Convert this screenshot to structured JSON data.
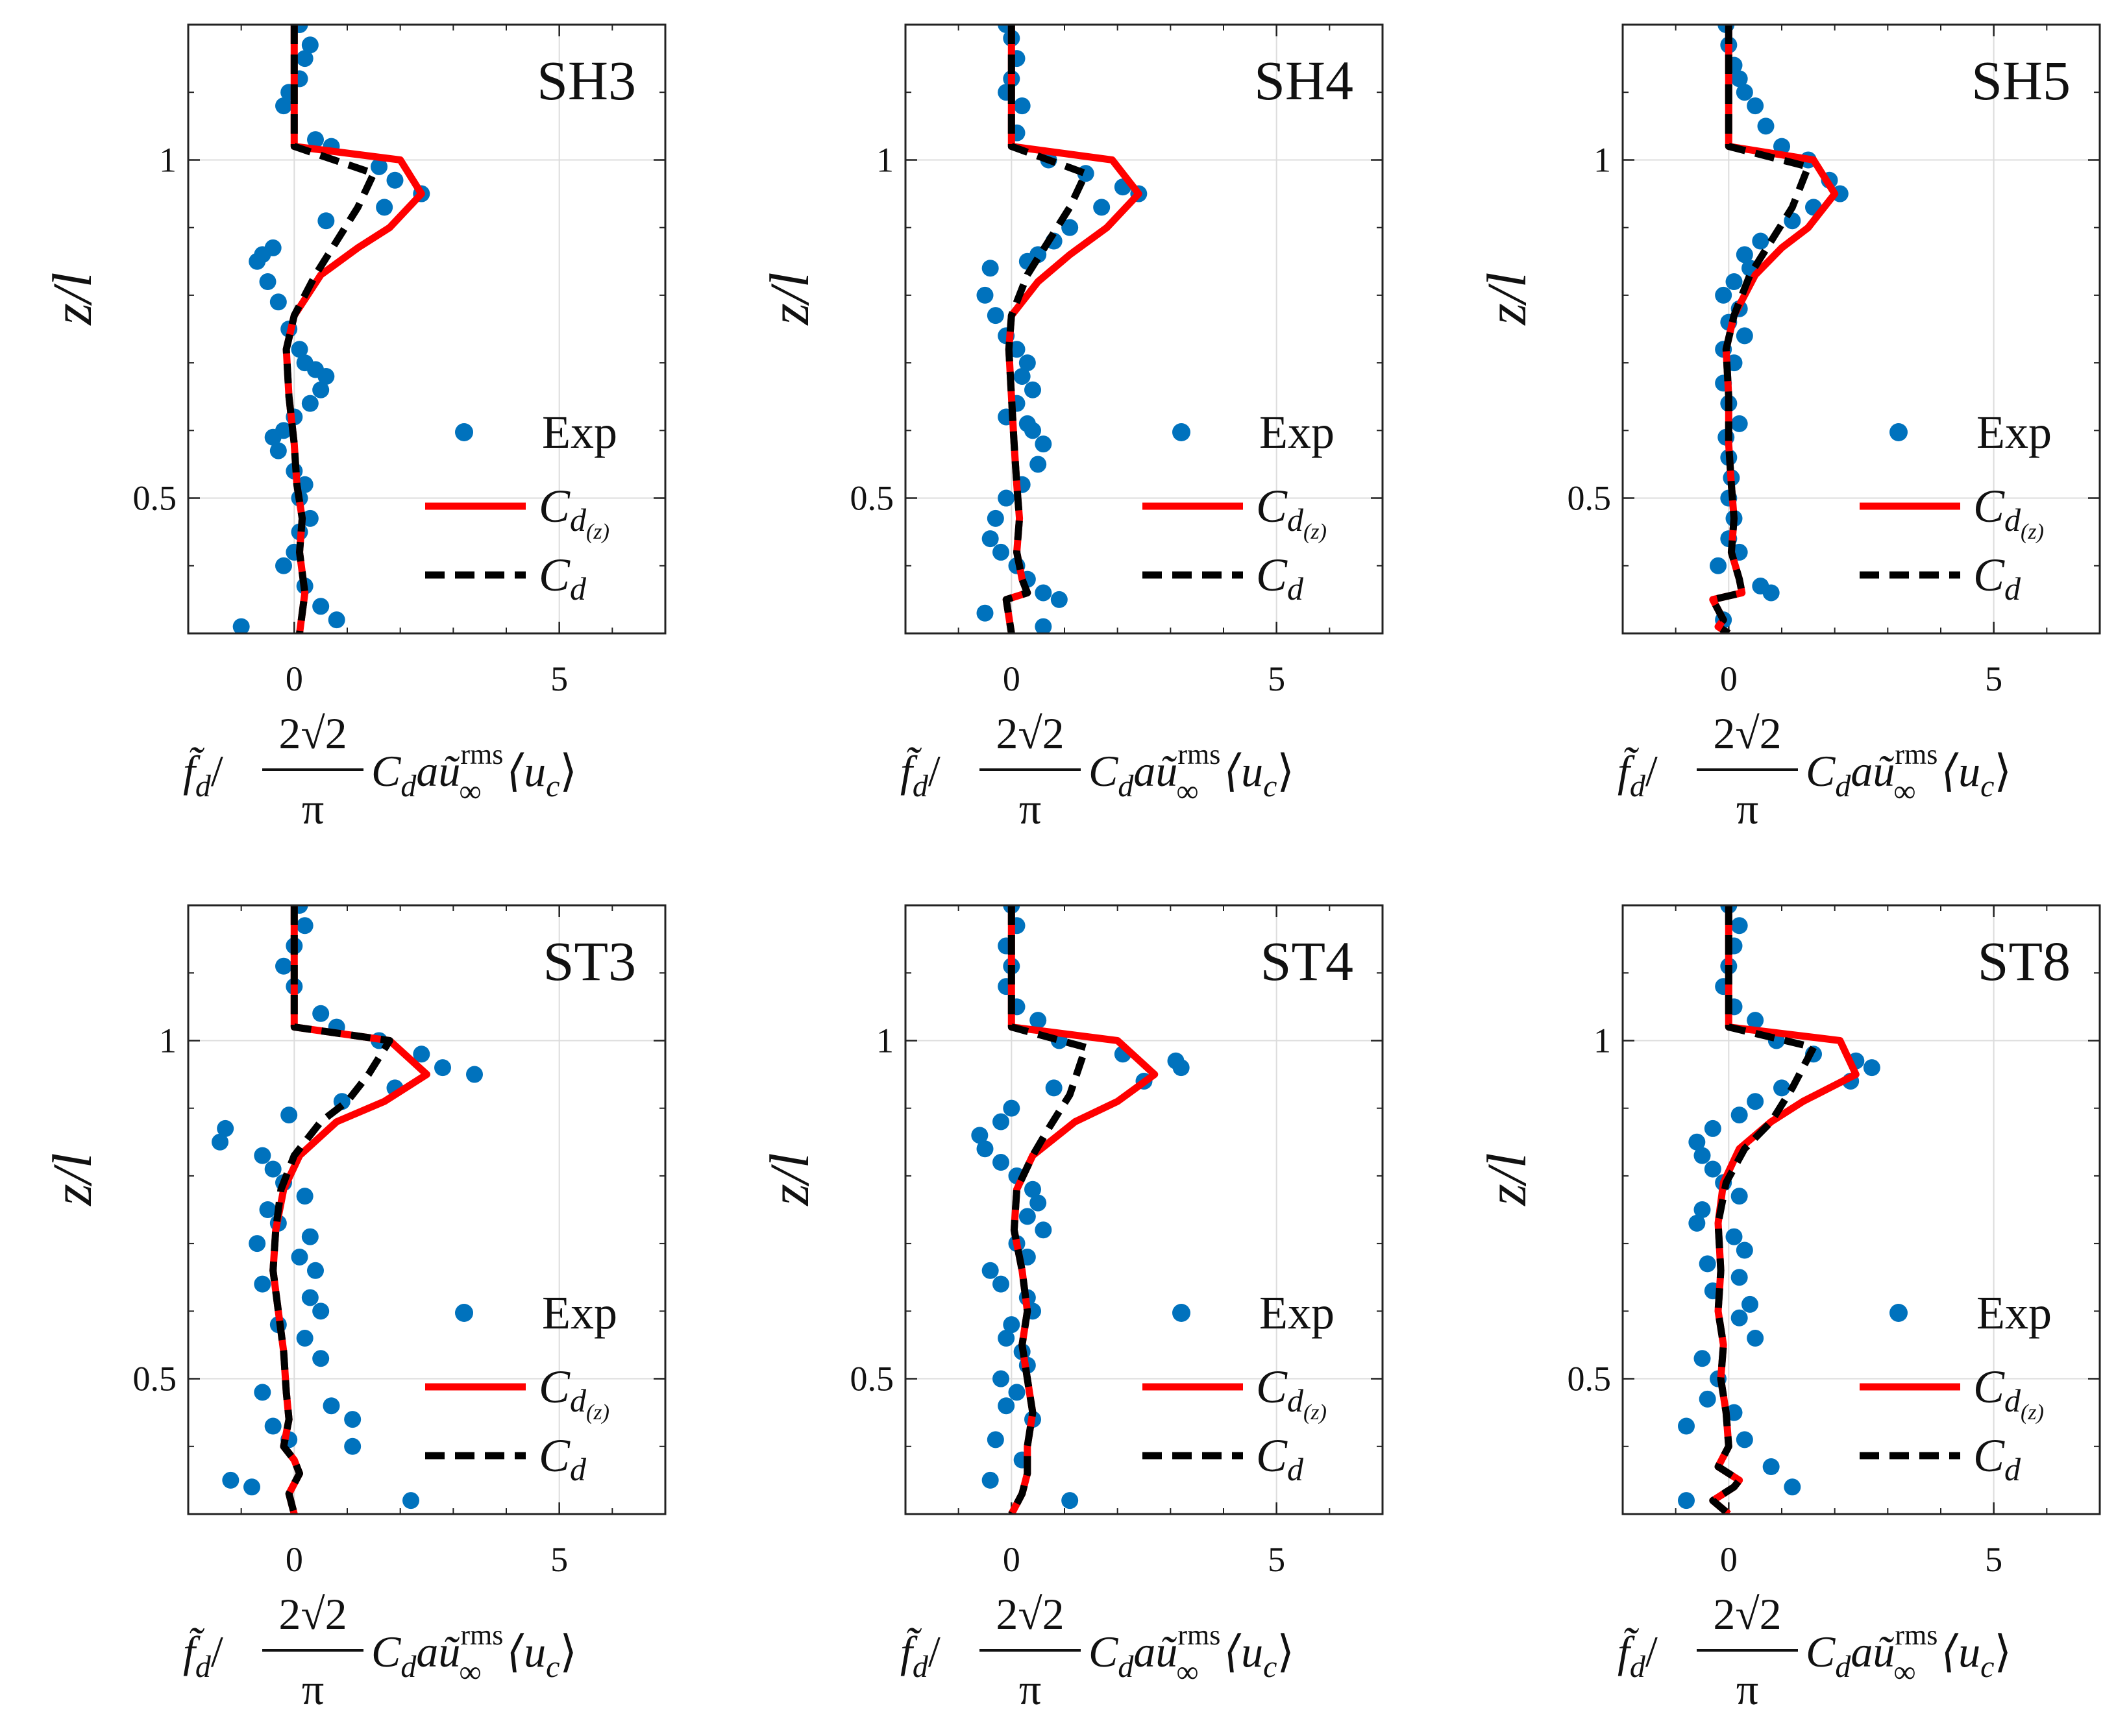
{
  "figure": {
    "ylabel": "z/l",
    "xlabel": {
      "numerator_left": "f̃",
      "sub_d": "d",
      "slash": "/",
      "frac_num": "2√2",
      "frac_den": "π",
      "cd_c": "C",
      "cd_sub": "d",
      "a": "a",
      "u": "ũ",
      "sup_rms": "rms",
      "sub_inf": "∞",
      "bracket": "⟨u",
      "bracket_sub": "c",
      "bracket_close": "⟩"
    },
    "legend": {
      "exp": "Exp",
      "cdz_main": "C",
      "cdz_sub": "d",
      "cdz_subsub": "(z)",
      "cd_main": "C",
      "cd_sub": "d"
    },
    "colors": {
      "exp": "#0072BD",
      "cdz": "#FF0000",
      "cd": "#000000",
      "grid": "#dcdcdc",
      "axis": "#222222"
    }
  },
  "chart_data": [
    {
      "type": "scatter+line",
      "title": "SH3",
      "xlim": [
        -2,
        7
      ],
      "ylim": [
        0.3,
        1.2
      ],
      "xticks": [
        0,
        5
      ],
      "yticks": [
        0.5,
        1
      ],
      "xtick_labels": [
        "0",
        "5"
      ],
      "ytick_labels": [
        "0.5",
        "1"
      ],
      "exp": {
        "x": [
          0.1,
          0.3,
          0.2,
          0.1,
          -0.1,
          -0.2,
          0.4,
          0.7,
          1.6,
          1.9,
          2.4,
          1.7,
          0.6,
          -0.4,
          -0.6,
          -0.7,
          -0.5,
          -0.3,
          -0.1,
          0.1,
          0.2,
          0.4,
          0.6,
          0.5,
          0.3,
          0,
          -0.2,
          -0.4,
          -0.3,
          0,
          0.2,
          0.1,
          0.3,
          0.1,
          0,
          -0.2,
          0.2,
          0.5,
          0.8,
          -1
        ],
        "z": [
          1.2,
          1.17,
          1.15,
          1.12,
          1.1,
          1.08,
          1.03,
          1.02,
          0.99,
          0.97,
          0.95,
          0.93,
          0.91,
          0.87,
          0.86,
          0.85,
          0.82,
          0.79,
          0.75,
          0.72,
          0.7,
          0.69,
          0.68,
          0.66,
          0.64,
          0.62,
          0.6,
          0.59,
          0.57,
          0.54,
          0.52,
          0.5,
          0.47,
          0.45,
          0.42,
          0.4,
          0.37,
          0.34,
          0.32,
          0.31
        ]
      },
      "cdz": {
        "x": [
          0,
          0,
          0,
          2,
          2.4,
          1.8,
          1.2,
          0.5,
          0,
          -0.15,
          -0.1,
          0,
          0.05,
          0.15,
          0.1,
          0.2,
          0.1
        ],
        "z": [
          1.2,
          1.1,
          1.02,
          1.0,
          0.95,
          0.9,
          0.87,
          0.83,
          0.77,
          0.72,
          0.65,
          0.58,
          0.52,
          0.47,
          0.42,
          0.36,
          0.3
        ]
      },
      "cd": {
        "x": [
          0,
          0,
          0,
          1.5,
          1.2,
          0.8,
          0.4,
          0,
          -0.15,
          -0.1,
          0,
          0.05,
          0.15,
          0.1,
          0.2,
          0.1
        ],
        "z": [
          1.2,
          1.1,
          1.02,
          0.98,
          0.93,
          0.88,
          0.83,
          0.77,
          0.72,
          0.65,
          0.58,
          0.52,
          0.47,
          0.42,
          0.36,
          0.3
        ]
      }
    },
    {
      "type": "scatter+line",
      "title": "SH4",
      "xlim": [
        -2,
        7
      ],
      "ylim": [
        0.3,
        1.2
      ],
      "xticks": [
        0,
        5
      ],
      "yticks": [
        0.5,
        1
      ],
      "xtick_labels": [
        "0",
        "5"
      ],
      "ytick_labels": [
        "0.5",
        "1"
      ],
      "exp": {
        "x": [
          -0.1,
          0,
          0.1,
          0,
          -0.1,
          0.2,
          0.1,
          0.7,
          1.4,
          2.1,
          2.4,
          1.7,
          1.1,
          0.8,
          0.5,
          0.3,
          -0.4,
          -0.5,
          -0.3,
          -0.1,
          0.1,
          0.3,
          0.2,
          0.4,
          0.1,
          -0.1,
          0.3,
          0.4,
          0.6,
          0.5,
          0.2,
          -0.1,
          -0.3,
          -0.4,
          -0.2,
          0.1,
          0.3,
          0.6,
          0.9,
          -0.5,
          0.6
        ],
        "z": [
          1.2,
          1.18,
          1.15,
          1.12,
          1.1,
          1.08,
          1.04,
          1.0,
          0.98,
          0.96,
          0.95,
          0.93,
          0.9,
          0.88,
          0.86,
          0.85,
          0.84,
          0.8,
          0.77,
          0.74,
          0.72,
          0.7,
          0.68,
          0.66,
          0.64,
          0.62,
          0.61,
          0.6,
          0.58,
          0.55,
          0.52,
          0.5,
          0.47,
          0.44,
          0.42,
          0.4,
          0.38,
          0.36,
          0.35,
          0.33,
          0.31
        ]
      },
      "cdz": {
        "x": [
          0,
          0,
          0,
          1.9,
          2.4,
          1.8,
          1.1,
          0.5,
          0,
          -0.05,
          0,
          0.05,
          0.1,
          0.15,
          0.1,
          0.2,
          0.3,
          -0.1,
          0
        ],
        "z": [
          1.2,
          1.1,
          1.02,
          1.0,
          0.95,
          0.9,
          0.86,
          0.82,
          0.77,
          0.72,
          0.65,
          0.58,
          0.52,
          0.47,
          0.42,
          0.38,
          0.36,
          0.35,
          0.3
        ]
      },
      "cd": {
        "x": [
          0,
          0,
          0,
          1.4,
          1.1,
          0.7,
          0.3,
          0,
          -0.05,
          0,
          0.05,
          0.1,
          0.15,
          0.1,
          0.2,
          0.3,
          -0.1,
          0
        ],
        "z": [
          1.2,
          1.1,
          1.02,
          0.98,
          0.93,
          0.88,
          0.83,
          0.77,
          0.72,
          0.65,
          0.58,
          0.52,
          0.47,
          0.42,
          0.38,
          0.36,
          0.35,
          0.3
        ]
      }
    },
    {
      "type": "scatter+line",
      "title": "SH5",
      "xlim": [
        -2,
        7
      ],
      "ylim": [
        0.3,
        1.2
      ],
      "xticks": [
        0,
        5
      ],
      "yticks": [
        0.5,
        1
      ],
      "xtick_labels": [
        "0",
        "5"
      ],
      "ytick_labels": [
        "0.5",
        "1"
      ],
      "exp": {
        "x": [
          -0.05,
          0,
          0.1,
          0.2,
          0.3,
          0.5,
          0.7,
          1,
          1.5,
          1.9,
          2.1,
          1.6,
          1.2,
          0.6,
          0.3,
          0.4,
          0.1,
          -0.1,
          0.2,
          0,
          0.3,
          -0.1,
          0.1,
          -0.1,
          0,
          0.2,
          -0.05,
          0,
          0.05,
          0,
          0.1,
          0,
          0.2,
          -0.2,
          0.6,
          0.8,
          -0.1
        ],
        "z": [
          1.2,
          1.17,
          1.14,
          1.12,
          1.1,
          1.08,
          1.05,
          1.02,
          1.0,
          0.97,
          0.95,
          0.93,
          0.91,
          0.88,
          0.86,
          0.84,
          0.82,
          0.8,
          0.78,
          0.76,
          0.74,
          0.72,
          0.7,
          0.67,
          0.64,
          0.61,
          0.59,
          0.56,
          0.53,
          0.5,
          0.47,
          0.44,
          0.42,
          0.4,
          0.37,
          0.36,
          0.32
        ]
      },
      "cdz": {
        "x": [
          0,
          0,
          0,
          1.6,
          2.0,
          1.5,
          1.0,
          0.5,
          0.1,
          -0.05,
          0,
          0,
          0.05,
          0.1,
          0.05,
          0.2,
          0.25,
          -0.3,
          -0.1,
          -0.2,
          0
        ],
        "z": [
          1.2,
          1.1,
          1.02,
          1.0,
          0.95,
          0.9,
          0.87,
          0.83,
          0.77,
          0.72,
          0.65,
          0.58,
          0.52,
          0.47,
          0.42,
          0.38,
          0.36,
          0.35,
          0.32,
          0.31,
          0.3
        ]
      },
      "cd": {
        "x": [
          0,
          0,
          0,
          1.5,
          1.2,
          0.8,
          0.4,
          0.1,
          -0.05,
          0,
          0,
          0.05,
          0.1,
          0.05,
          0.2,
          0.25,
          -0.3,
          -0.1,
          -0.2,
          0
        ],
        "z": [
          1.2,
          1.1,
          1.02,
          0.99,
          0.93,
          0.88,
          0.83,
          0.77,
          0.72,
          0.65,
          0.58,
          0.52,
          0.47,
          0.42,
          0.38,
          0.36,
          0.35,
          0.32,
          0.31,
          0.3
        ]
      }
    },
    {
      "type": "scatter+line",
      "title": "ST3",
      "xlim": [
        -2,
        7
      ],
      "ylim": [
        0.3,
        1.2
      ],
      "xticks": [
        0,
        5
      ],
      "yticks": [
        0.5,
        1
      ],
      "xtick_labels": [
        "0",
        "5"
      ],
      "ytick_labels": [
        "0.5",
        "1"
      ],
      "exp": {
        "x": [
          0.1,
          0.2,
          0,
          -0.2,
          0,
          0.5,
          0.8,
          1.6,
          2.4,
          2.8,
          3.4,
          1.9,
          0.9,
          -0.1,
          -1.3,
          -1.4,
          -0.6,
          -0.4,
          -0.2,
          0.2,
          -0.5,
          -0.3,
          0.3,
          -0.7,
          0.1,
          0.4,
          -0.6,
          0.3,
          0.5,
          -0.3,
          0.2,
          0.5,
          -0.6,
          0.7,
          -0.4,
          1.1,
          1.1,
          -0.1,
          -1.2,
          -0.8,
          2.2
        ],
        "z": [
          1.2,
          1.17,
          1.14,
          1.11,
          1.08,
          1.04,
          1.02,
          1.0,
          0.98,
          0.96,
          0.95,
          0.93,
          0.91,
          0.89,
          0.87,
          0.85,
          0.83,
          0.81,
          0.79,
          0.77,
          0.75,
          0.73,
          0.71,
          0.7,
          0.68,
          0.66,
          0.64,
          0.62,
          0.6,
          0.58,
          0.56,
          0.53,
          0.48,
          0.46,
          0.43,
          0.44,
          0.4,
          0.41,
          0.35,
          0.34,
          0.32
        ]
      },
      "cdz": {
        "x": [
          0,
          0,
          0,
          1.8,
          2.5,
          1.7,
          0.8,
          0.1,
          -0.2,
          -0.35,
          -0.4,
          -0.3,
          -0.2,
          -0.15,
          -0.1,
          -0.2,
          0,
          0.1,
          -0.1,
          0
        ],
        "z": [
          1.2,
          1.1,
          1.02,
          1.0,
          0.95,
          0.91,
          0.88,
          0.83,
          0.78,
          0.72,
          0.66,
          0.6,
          0.54,
          0.48,
          0.44,
          0.4,
          0.38,
          0.36,
          0.33,
          0.3
        ]
      },
      "cd": {
        "x": [
          0,
          0,
          0,
          1.8,
          1.4,
          1.0,
          0.5,
          0,
          -0.25,
          -0.35,
          -0.4,
          -0.3,
          -0.2,
          -0.15,
          -0.1,
          -0.2,
          0,
          0.1,
          -0.1,
          0
        ],
        "z": [
          1.2,
          1.1,
          1.02,
          1.0,
          0.95,
          0.91,
          0.88,
          0.83,
          0.78,
          0.72,
          0.66,
          0.6,
          0.54,
          0.48,
          0.44,
          0.4,
          0.38,
          0.36,
          0.33,
          0.3
        ]
      }
    },
    {
      "type": "scatter+line",
      "title": "ST4",
      "xlim": [
        -2,
        7
      ],
      "ylim": [
        0.3,
        1.2
      ],
      "xticks": [
        0,
        5
      ],
      "yticks": [
        0.5,
        1
      ],
      "xtick_labels": [
        "0",
        "5"
      ],
      "ytick_labels": [
        "0.5",
        "1"
      ],
      "exp": {
        "x": [
          0,
          0.1,
          -0.1,
          0,
          -0.1,
          0.1,
          0.5,
          0.9,
          2.1,
          3.1,
          3.2,
          2.5,
          0.8,
          0,
          -0.2,
          -0.6,
          -0.5,
          -0.2,
          0.1,
          0.4,
          0.5,
          0.3,
          0.6,
          0.1,
          0.3,
          -0.4,
          -0.2,
          0.3,
          0.4,
          0,
          -0.1,
          0.2,
          0.3,
          -0.2,
          0.1,
          -0.1,
          0.4,
          -0.3,
          0.2,
          -0.4,
          1.1
        ],
        "z": [
          1.2,
          1.17,
          1.14,
          1.11,
          1.08,
          1.05,
          1.03,
          1.0,
          0.98,
          0.97,
          0.96,
          0.94,
          0.93,
          0.9,
          0.88,
          0.86,
          0.84,
          0.82,
          0.8,
          0.78,
          0.76,
          0.74,
          0.72,
          0.7,
          0.68,
          0.66,
          0.64,
          0.62,
          0.6,
          0.58,
          0.56,
          0.54,
          0.52,
          0.5,
          0.48,
          0.46,
          0.44,
          0.41,
          0.38,
          0.35,
          0.32
        ]
      },
      "cdz": {
        "x": [
          0,
          0,
          0,
          2.0,
          2.7,
          2.0,
          1.2,
          0.4,
          0.1,
          0.05,
          0.2,
          0.3,
          0.2,
          0.3,
          0.4,
          0.3,
          0.3,
          0.2,
          0
        ],
        "z": [
          1.2,
          1.1,
          1.02,
          1.0,
          0.95,
          0.91,
          0.88,
          0.83,
          0.78,
          0.72,
          0.66,
          0.6,
          0.55,
          0.5,
          0.45,
          0.4,
          0.36,
          0.33,
          0.3
        ]
      },
      "cd": {
        "x": [
          0,
          0,
          0,
          1.4,
          1.1,
          0.7,
          0.4,
          0.1,
          0.05,
          0.2,
          0.3,
          0.2,
          0.3,
          0.4,
          0.3,
          0.3,
          0.2,
          0
        ],
        "z": [
          1.2,
          1.1,
          1.02,
          0.99,
          0.92,
          0.87,
          0.83,
          0.78,
          0.72,
          0.66,
          0.6,
          0.55,
          0.5,
          0.45,
          0.4,
          0.36,
          0.33,
          0.3
        ]
      }
    },
    {
      "type": "scatter+line",
      "title": "ST8",
      "xlim": [
        -2,
        7
      ],
      "ylim": [
        0.3,
        1.2
      ],
      "xticks": [
        0,
        5
      ],
      "yticks": [
        0.5,
        1
      ],
      "xtick_labels": [
        "0",
        "5"
      ],
      "ytick_labels": [
        "0.5",
        "1"
      ],
      "exp": {
        "x": [
          0,
          0.2,
          0.1,
          0,
          -0.1,
          0.1,
          0.5,
          0.9,
          1.6,
          2.4,
          2.7,
          2.3,
          1.0,
          0.5,
          0.2,
          -0.3,
          -0.6,
          -0.5,
          -0.3,
          -0.1,
          0.2,
          -0.5,
          -0.6,
          0.1,
          0.3,
          -0.4,
          0.2,
          -0.3,
          0.4,
          0.2,
          0.5,
          -0.5,
          -0.2,
          -0.4,
          0.1,
          -0.8,
          0.3,
          0.8,
          1.2,
          -0.8
        ],
        "z": [
          1.2,
          1.17,
          1.14,
          1.11,
          1.08,
          1.05,
          1.03,
          1.0,
          0.98,
          0.97,
          0.96,
          0.94,
          0.93,
          0.91,
          0.89,
          0.87,
          0.85,
          0.83,
          0.81,
          0.79,
          0.77,
          0.75,
          0.73,
          0.71,
          0.69,
          0.67,
          0.65,
          0.63,
          0.61,
          0.59,
          0.56,
          0.53,
          0.5,
          0.47,
          0.45,
          0.43,
          0.41,
          0.37,
          0.34,
          0.32
        ]
      },
      "cdz": {
        "x": [
          0,
          0,
          0,
          2.1,
          2.4,
          1.4,
          0.8,
          0.2,
          -0.1,
          -0.2,
          -0.15,
          -0.2,
          -0.1,
          -0.15,
          -0.05,
          0,
          -0.2,
          0.2,
          0.1,
          -0.3,
          0
        ],
        "z": [
          1.2,
          1.1,
          1.02,
          1.0,
          0.95,
          0.91,
          0.88,
          0.84,
          0.79,
          0.73,
          0.66,
          0.6,
          0.55,
          0.5,
          0.45,
          0.4,
          0.37,
          0.35,
          0.34,
          0.32,
          0.3
        ]
      },
      "cd": {
        "x": [
          0,
          0,
          0,
          1.6,
          1.2,
          0.8,
          0.3,
          -0.05,
          -0.2,
          -0.15,
          -0.2,
          -0.1,
          -0.15,
          -0.05,
          0,
          -0.2,
          0.2,
          0.1,
          -0.3,
          0
        ],
        "z": [
          1.2,
          1.1,
          1.02,
          0.99,
          0.93,
          0.88,
          0.84,
          0.79,
          0.73,
          0.66,
          0.6,
          0.55,
          0.5,
          0.45,
          0.4,
          0.37,
          0.35,
          0.34,
          0.32,
          0.3
        ]
      }
    }
  ]
}
